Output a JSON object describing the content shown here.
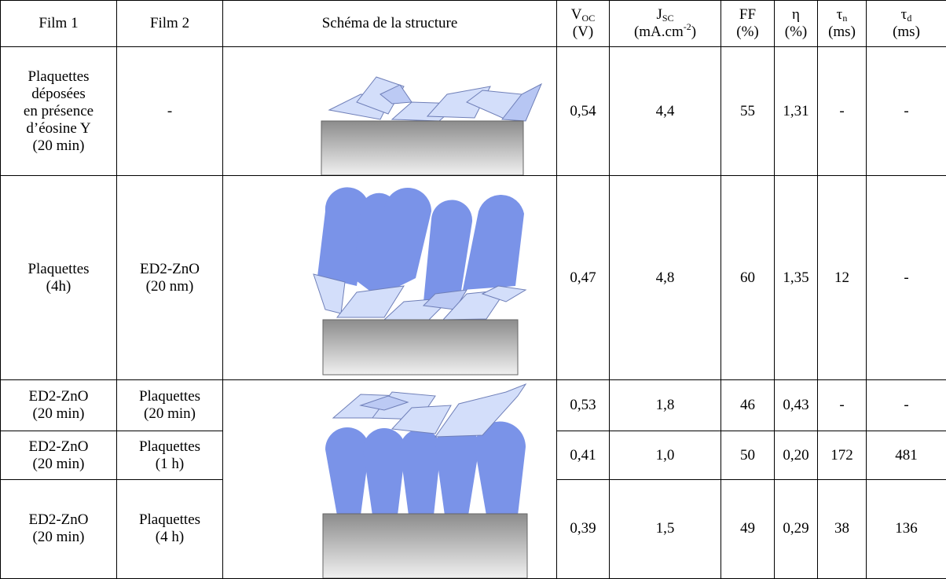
{
  "table": {
    "columns": [
      {
        "text": "Film 1"
      },
      {
        "text": "Film 2"
      },
      {
        "text": "Schéma de la structure"
      },
      {
        "symbol": "V",
        "sub": "OC",
        "unit": "(V)"
      },
      {
        "symbol": "J",
        "sub": "SC",
        "unit": "(mA.cm",
        "unit_sup": "-2",
        "unit_end": ")"
      },
      {
        "symbol": "FF",
        "unit": "(%)"
      },
      {
        "symbol": "η",
        "unit": "(%)"
      },
      {
        "symbol": "τ",
        "sub": "n",
        "unit": "(ms)"
      },
      {
        "symbol": "τ",
        "sub": "d",
        "unit": "(ms)"
      }
    ],
    "rows": [
      {
        "film1": [
          "Plaquettes déposées",
          "en présence",
          "d’éosine Y",
          "(20 min)"
        ],
        "film2": [
          "-"
        ],
        "cells": [
          "0,54",
          "4,4",
          "55",
          "1,31",
          "-",
          "-"
        ]
      },
      {
        "film1": [
          "Plaquettes",
          "(4h)"
        ],
        "film2": [
          "ED2-ZnO",
          "(20 nm)"
        ],
        "cells": [
          "0,47",
          "4,8",
          "60",
          "1,35",
          "12",
          "-"
        ]
      },
      {
        "film1": [
          "ED2-ZnO",
          "(20 min)"
        ],
        "film2": [
          "Plaquettes",
          "(20 min)"
        ],
        "cells": [
          "0,53",
          "1,8",
          "46",
          "0,43",
          "-",
          "-"
        ]
      },
      {
        "film1": [
          "ED2-ZnO",
          "(20 min)"
        ],
        "film2": [
          "Plaquettes",
          "(1 h)"
        ],
        "cells": [
          "0,41",
          "1,0",
          "50",
          "0,20",
          "172",
          "481"
        ]
      },
      {
        "film1": [
          "ED2-ZnO",
          "(20 min)"
        ],
        "film2": [
          "Plaquettes",
          "(4 h)"
        ],
        "cells": [
          "0,39",
          "1,5",
          "49",
          "0,29",
          "38",
          "136"
        ]
      }
    ]
  }
}
